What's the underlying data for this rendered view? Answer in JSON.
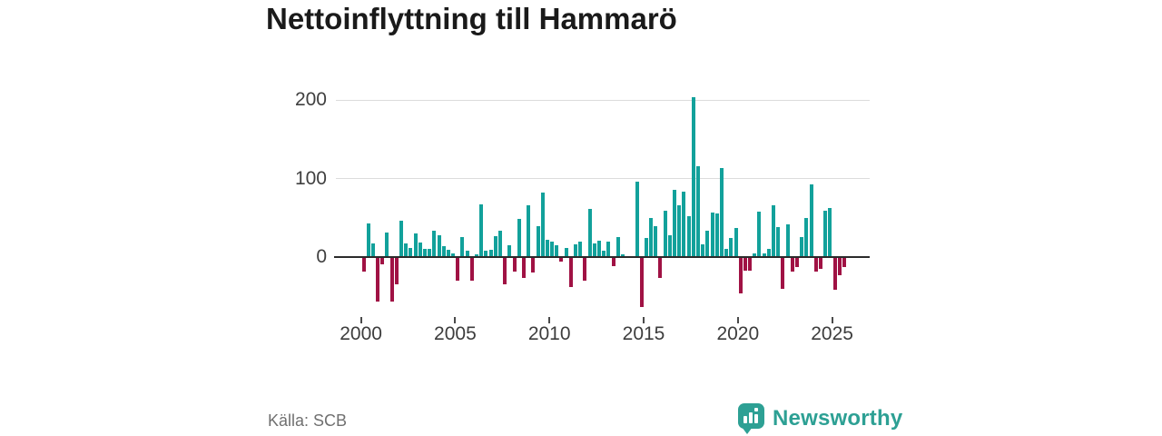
{
  "title": "Nettoinflyttning till Hammarö",
  "source": "Källa: SCB",
  "brand": {
    "name": "Newsworthy",
    "icon": "bar-chart-speech-bubble"
  },
  "colors": {
    "positive_bar": "#12a19b",
    "negative_bar": "#a01244",
    "brand_teal": "#2da094",
    "axis_line": "#2b2b2b",
    "gridline": "#dcdcdc"
  },
  "chart_data": {
    "type": "bar",
    "title": "Nettoinflyttning till Hammarö",
    "xlabel": "",
    "ylabel": "",
    "frequency": "quarterly",
    "start_period": "2000 Q1",
    "end_period": "2025 Q3",
    "grid": "horizontal",
    "legend": "none",
    "y_ticks": [
      0,
      100,
      200
    ],
    "ylim": [
      -70,
      215
    ],
    "x_tick_labels": [
      "2000",
      "2005",
      "2010",
      "2015",
      "2020",
      "2025"
    ],
    "values": [
      -17,
      43,
      17,
      -56,
      -8,
      31,
      -56,
      -34,
      46,
      17,
      12,
      30,
      19,
      10,
      10,
      33,
      28,
      14,
      9,
      5,
      -29,
      25,
      8,
      -29,
      3,
      67,
      8,
      9,
      27,
      34,
      -33,
      15,
      -17,
      48,
      -25,
      66,
      -18,
      39,
      82,
      22,
      20,
      15,
      -5,
      11,
      -37,
      16,
      20,
      -29,
      61,
      17,
      21,
      8,
      20,
      -10,
      25,
      3,
      0,
      0,
      96,
      -62,
      24,
      50,
      39,
      -26,
      59,
      28,
      85,
      66,
      83,
      52,
      203,
      116,
      16,
      34,
      57,
      56,
      113,
      10,
      24,
      37,
      -45,
      -16,
      -16,
      5,
      58,
      5,
      10,
      66,
      38,
      -39,
      42,
      -17,
      -12,
      25,
      50,
      93,
      -17,
      -14,
      59,
      63,
      -40,
      -22,
      -11
    ]
  }
}
